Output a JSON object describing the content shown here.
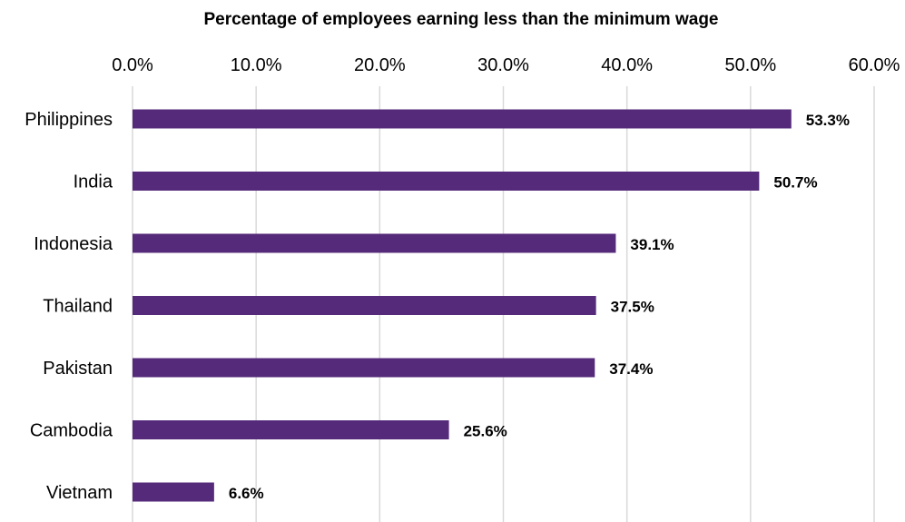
{
  "chart_data": {
    "type": "bar",
    "orientation": "horizontal",
    "title": "Percentage of employees earning less than the minimum wage",
    "xlabel": "",
    "ylabel": "",
    "categories": [
      "Philippines",
      "India",
      "Indonesia",
      "Thailand",
      "Pakistan",
      "Cambodia",
      "Vietnam"
    ],
    "values": [
      53.3,
      50.7,
      39.1,
      37.5,
      37.4,
      25.6,
      6.6
    ],
    "data_labels": [
      "53.3%",
      "50.7%",
      "39.1%",
      "37.5%",
      "37.4%",
      "25.6%",
      "6.6%"
    ],
    "xlim": [
      0,
      60
    ],
    "ticks": [
      0,
      10,
      20,
      30,
      40,
      50,
      60
    ],
    "tick_labels": [
      "0.0%",
      "10.0%",
      "20.0%",
      "30.0%",
      "40.0%",
      "50.0%",
      "60.0%"
    ],
    "axis_position": "top",
    "grid": true,
    "legend": "none",
    "bar_color": "#552a7a",
    "grid_color": "#d9d9d9"
  }
}
